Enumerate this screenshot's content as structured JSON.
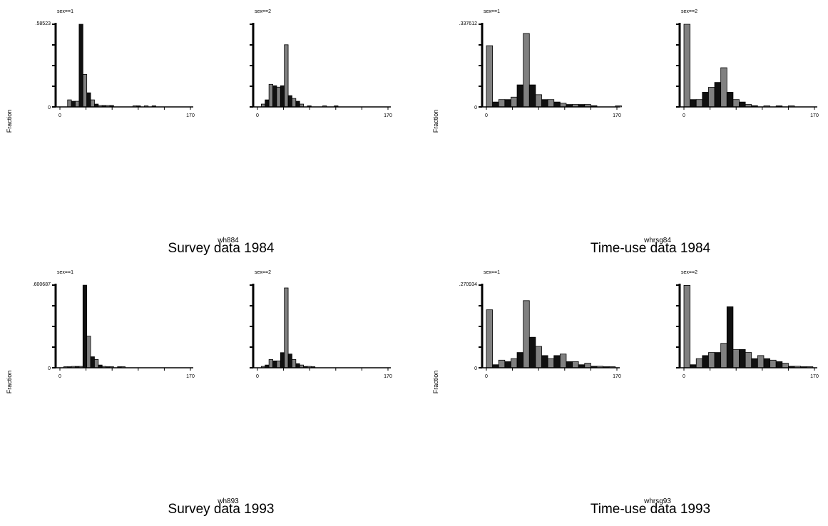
{
  "figure": {
    "ylabel": "Fraction",
    "panels": [
      {
        "id": "p1",
        "var": "wh884",
        "caption": "Survey data 1984"
      },
      {
        "id": "p2",
        "var": "whrsg84",
        "caption": "Time-use data 1984"
      },
      {
        "id": "p3",
        "var": "wh893",
        "caption": "Survey data 1993"
      },
      {
        "id": "p4",
        "var": "whrsg93",
        "caption": "Time-use data 1993"
      }
    ]
  },
  "chart_data": [
    {
      "type": "bar",
      "panel": "p1",
      "ylabel": "Fraction",
      "ymax_label": ".58523",
      "xticks": [
        "0",
        "170"
      ],
      "xlim": [
        0,
        170
      ],
      "ylim": [
        0,
        0.58523
      ],
      "subplots": [
        {
          "title": "sex==1",
          "bins": [
            [
              10,
              0.05
            ],
            [
              15,
              0.04
            ],
            [
              20,
              0.04
            ],
            [
              25,
              0.585
            ],
            [
              30,
              0.23
            ],
            [
              35,
              0.1
            ],
            [
              40,
              0.05
            ],
            [
              45,
              0.02
            ],
            [
              50,
              0.01
            ],
            [
              55,
              0.01
            ],
            [
              60,
              0.01
            ],
            [
              65,
              0.01
            ],
            [
              95,
              0.005
            ],
            [
              100,
              0.005
            ],
            [
              110,
              0.005
            ],
            [
              120,
              0.005
            ]
          ]
        },
        {
          "title": "sex==2",
          "bins": [
            [
              5,
              0.02
            ],
            [
              10,
              0.05
            ],
            [
              15,
              0.16
            ],
            [
              20,
              0.15
            ],
            [
              25,
              0.14
            ],
            [
              30,
              0.15
            ],
            [
              35,
              0.44
            ],
            [
              40,
              0.08
            ],
            [
              45,
              0.06
            ],
            [
              50,
              0.04
            ],
            [
              55,
              0.02
            ],
            [
              65,
              0.005
            ],
            [
              85,
              0.005
            ],
            [
              100,
              0.005
            ]
          ]
        }
      ]
    },
    {
      "type": "bar",
      "panel": "p2",
      "ylabel": "Fraction",
      "ymax_label": ".337612",
      "xticks": [
        "0",
        "170"
      ],
      "xlim": [
        0,
        170
      ],
      "ylim": [
        0,
        0.337612
      ],
      "subplots": [
        {
          "title": "sex==1",
          "bins": [
            [
              0,
              0.25
            ],
            [
              8,
              0.02
            ],
            [
              16,
              0.03
            ],
            [
              24,
              0.03
            ],
            [
              32,
              0.04
            ],
            [
              40,
              0.09
            ],
            [
              48,
              0.3
            ],
            [
              56,
              0.09
            ],
            [
              64,
              0.05
            ],
            [
              72,
              0.03
            ],
            [
              80,
              0.03
            ],
            [
              88,
              0.02
            ],
            [
              96,
              0.015
            ],
            [
              104,
              0.01
            ],
            [
              112,
              0.01
            ],
            [
              120,
              0.01
            ],
            [
              128,
              0.01
            ],
            [
              136,
              0.005
            ],
            [
              168,
              0.002
            ]
          ]
        },
        {
          "title": "sex==2",
          "bins": [
            [
              0,
              0.3375
            ],
            [
              8,
              0.03
            ],
            [
              16,
              0.03
            ],
            [
              24,
              0.06
            ],
            [
              32,
              0.08
            ],
            [
              40,
              0.1
            ],
            [
              48,
              0.16
            ],
            [
              56,
              0.06
            ],
            [
              64,
              0.03
            ],
            [
              72,
              0.02
            ],
            [
              80,
              0.01
            ],
            [
              88,
              0.005
            ],
            [
              104,
              0.003
            ],
            [
              120,
              0.003
            ],
            [
              136,
              0.002
            ]
          ]
        }
      ]
    },
    {
      "type": "bar",
      "panel": "p3",
      "ylabel": "Fraction",
      "ymax_label": ".600687",
      "xticks": [
        "0",
        "170"
      ],
      "xlim": [
        0,
        170
      ],
      "ylim": [
        0,
        0.600687
      ],
      "subplots": [
        {
          "title": "sex==1",
          "bins": [
            [
              5,
              0.005
            ],
            [
              10,
              0.005
            ],
            [
              15,
              0.01
            ],
            [
              20,
              0.01
            ],
            [
              25,
              0.01
            ],
            [
              30,
              0.6
            ],
            [
              35,
              0.23
            ],
            [
              40,
              0.08
            ],
            [
              45,
              0.06
            ],
            [
              50,
              0.02
            ],
            [
              55,
              0.01
            ],
            [
              60,
              0.005
            ],
            [
              65,
              0.005
            ],
            [
              75,
              0.005
            ],
            [
              80,
              0.005
            ]
          ]
        },
        {
          "title": "sex==2",
          "bins": [
            [
              5,
              0.01
            ],
            [
              10,
              0.02
            ],
            [
              15,
              0.06
            ],
            [
              20,
              0.05
            ],
            [
              25,
              0.05
            ],
            [
              30,
              0.11
            ],
            [
              35,
              0.58
            ],
            [
              40,
              0.1
            ],
            [
              45,
              0.06
            ],
            [
              50,
              0.03
            ],
            [
              55,
              0.02
            ],
            [
              60,
              0.01
            ],
            [
              65,
              0.01
            ],
            [
              70,
              0.005
            ]
          ]
        }
      ]
    },
    {
      "type": "bar",
      "panel": "p4",
      "ylabel": "Fraction",
      "ymax_label": ".270934",
      "xticks": [
        "0",
        "170"
      ],
      "xlim": [
        0,
        170
      ],
      "ylim": [
        0,
        0.270934
      ],
      "subplots": [
        {
          "title": "sex==1",
          "bins": [
            [
              0,
              0.19
            ],
            [
              8,
              0.01
            ],
            [
              16,
              0.025
            ],
            [
              24,
              0.02
            ],
            [
              32,
              0.03
            ],
            [
              40,
              0.05
            ],
            [
              48,
              0.22
            ],
            [
              56,
              0.1
            ],
            [
              64,
              0.07
            ],
            [
              72,
              0.04
            ],
            [
              80,
              0.03
            ],
            [
              88,
              0.04
            ],
            [
              96,
              0.045
            ],
            [
              104,
              0.02
            ],
            [
              112,
              0.02
            ],
            [
              120,
              0.01
            ],
            [
              128,
              0.015
            ],
            [
              136,
              0.005
            ],
            [
              144,
              0.005
            ],
            [
              152,
              0.003
            ],
            [
              160,
              0.003
            ]
          ]
        },
        {
          "title": "sex==2",
          "bins": [
            [
              0,
              0.27
            ],
            [
              8,
              0.01
            ],
            [
              16,
              0.03
            ],
            [
              24,
              0.04
            ],
            [
              32,
              0.05
            ],
            [
              40,
              0.05
            ],
            [
              48,
              0.08
            ],
            [
              56,
              0.2
            ],
            [
              64,
              0.06
            ],
            [
              72,
              0.06
            ],
            [
              80,
              0.05
            ],
            [
              88,
              0.03
            ],
            [
              96,
              0.04
            ],
            [
              104,
              0.03
            ],
            [
              112,
              0.025
            ],
            [
              120,
              0.02
            ],
            [
              128,
              0.015
            ],
            [
              136,
              0.005
            ],
            [
              144,
              0.005
            ],
            [
              152,
              0.003
            ],
            [
              160,
              0.003
            ]
          ]
        }
      ]
    }
  ]
}
